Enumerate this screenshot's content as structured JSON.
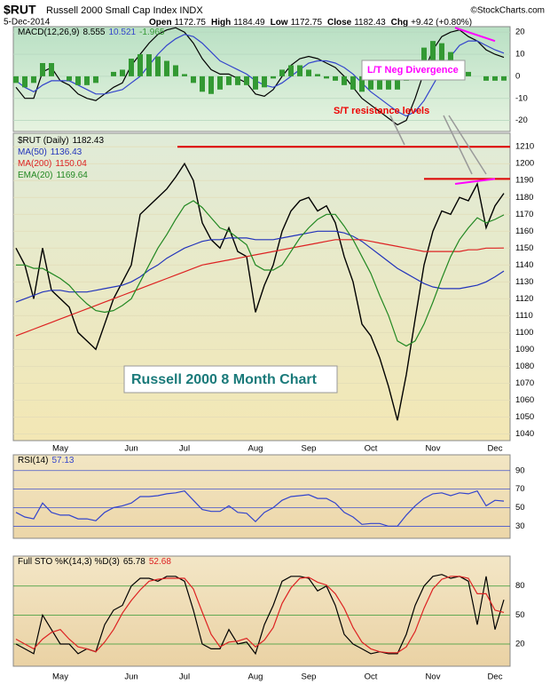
{
  "header": {
    "symbol": "$RUT",
    "name": "Russell 2000 Small Cap Index INDX",
    "date": "5-Dec-2014",
    "source": "©StockCharts.com",
    "quote": [
      {
        "label": "Open",
        "value": "1172.75"
      },
      {
        "label": "High",
        "value": "1184.49"
      },
      {
        "label": "Low",
        "value": "1172.75"
      },
      {
        "label": "Close",
        "value": "1182.43"
      },
      {
        "label": "Chg",
        "value": "+9.42 (+0.80%)"
      }
    ]
  },
  "annotations": [
    "L/T Neg Divergence",
    "S/T resistance levels",
    "Russell 2000 8 Month Chart"
  ],
  "chart_data": [
    {
      "type": "line",
      "label": "MACD(12,26,9)",
      "ylim": [
        -25,
        22.5
      ],
      "yticks": [
        20,
        10,
        0,
        -10,
        -20
      ],
      "grid": true,
      "grid_color": "#b8d8c0",
      "trendline": {
        "values": [
          22,
          16
        ],
        "color": "#ff00ff"
      },
      "series": [
        {
          "color": "#000000",
          "values": [
            -5,
            -10,
            -10,
            2,
            4,
            -2,
            -4,
            -8,
            -10,
            -11,
            -8,
            -5,
            -3,
            5,
            10,
            15,
            19,
            21,
            22,
            20,
            15,
            8,
            3,
            1,
            1,
            -1,
            -3,
            -8,
            -9,
            -6,
            0,
            5,
            8,
            9,
            8,
            6,
            4,
            0,
            -5,
            -10,
            -13,
            -16,
            -19,
            -22,
            -20,
            -10,
            2,
            12,
            18,
            20,
            21,
            18,
            16,
            12,
            10,
            8.555
          ]
        },
        {
          "color": "#3344cc",
          "values": [
            -2,
            -5,
            -7,
            -4,
            -2,
            -2,
            -2,
            -4,
            -6,
            -8,
            -8,
            -7,
            -6,
            -3,
            0,
            5,
            10,
            14,
            17,
            19,
            18,
            15,
            11,
            7,
            5,
            3,
            1,
            -2,
            -4,
            -5,
            -3,
            0,
            3,
            6,
            7,
            7,
            6,
            4,
            1,
            -3,
            -7,
            -10,
            -13,
            -16,
            -18,
            -16,
            -11,
            -4,
            3,
            9,
            14,
            16,
            16,
            14,
            12,
            10.521
          ]
        },
        {
          "color": "#339933",
          "type": "bar",
          "values": [
            -3,
            -5,
            -3,
            6,
            6,
            0,
            -2,
            -4,
            -4,
            -3,
            0,
            2,
            3,
            8,
            10,
            10,
            9,
            7,
            5,
            1,
            -3,
            -7,
            -8,
            -6,
            -4,
            -4,
            -4,
            -6,
            -5,
            -1,
            3,
            5,
            5,
            3,
            1,
            -1,
            -2,
            -4,
            -6,
            -7,
            -6,
            -6,
            -6,
            -6,
            -2,
            6,
            13,
            16,
            15,
            11,
            7,
            2,
            0,
            -2,
            -2,
            -1.965
          ]
        }
      ]
    },
    {
      "type": "line",
      "ylim": [
        1036,
        1218
      ],
      "yticks": [
        1040,
        1050,
        1060,
        1070,
        1080,
        1090,
        1100,
        1110,
        1120,
        1130,
        1140,
        1150,
        1160,
        1170,
        1180,
        1190,
        1200,
        1210
      ],
      "grid": true,
      "grid_color": "#e2dcb8",
      "categories": [
        null,
        null,
        null,
        null,
        null,
        "May",
        null,
        null,
        null,
        null,
        null,
        null,
        null,
        "Jun",
        null,
        null,
        null,
        null,
        null,
        "Jul",
        null,
        null,
        null,
        null,
        null,
        null,
        null,
        "Aug",
        null,
        null,
        null,
        null,
        null,
        "Sep",
        null,
        null,
        null,
        null,
        null,
        null,
        "Oct",
        null,
        null,
        null,
        null,
        null,
        null,
        "Nov",
        null,
        null,
        null,
        null,
        null,
        null,
        "Dec",
        null
      ],
      "hlines": [
        1210,
        1191
      ],
      "hline_color": "#dd0000",
      "trendline": {
        "values": [
          1188,
          1191
        ],
        "color": "#ff00ff"
      },
      "series": [
        {
          "name": "$RUT (Daily)",
          "color": "#000000",
          "values": [
            1150,
            1140,
            1120,
            1150,
            1125,
            1120,
            1115,
            1100,
            1095,
            1090,
            1105,
            1120,
            1130,
            1140,
            1170,
            1175,
            1180,
            1185,
            1192,
            1200,
            1190,
            1165,
            1155,
            1150,
            1162,
            1148,
            1145,
            1112,
            1128,
            1140,
            1160,
            1172,
            1178,
            1180,
            1172,
            1175,
            1165,
            1145,
            1130,
            1105,
            1098,
            1085,
            1068,
            1048,
            1075,
            1108,
            1140,
            1160,
            1172,
            1170,
            1180,
            1178,
            1188,
            1162,
            1175,
            1182.43
          ]
        },
        {
          "name": "MA(50)",
          "color": "#2233bb",
          "values": [
            1118,
            1120,
            1122,
            1124,
            1125,
            1125,
            1124,
            1124,
            1124,
            1125,
            1126,
            1127,
            1128,
            1130,
            1133,
            1137,
            1140,
            1144,
            1147,
            1150,
            1152,
            1154,
            1155,
            1155,
            1156,
            1156,
            1156,
            1155,
            1155,
            1155,
            1156,
            1157,
            1158,
            1159,
            1160,
            1160,
            1160,
            1159,
            1157,
            1154,
            1150,
            1146,
            1142,
            1138,
            1135,
            1132,
            1129,
            1127,
            1126,
            1126,
            1126,
            1127,
            1128,
            1130,
            1133,
            1136.43
          ]
        },
        {
          "name": "MA(200)",
          "color": "#dd2222",
          "values": [
            1098,
            1100,
            1102,
            1104,
            1106,
            1108,
            1110,
            1112,
            1114,
            1116,
            1118,
            1120,
            1122,
            1124,
            1126,
            1128,
            1130,
            1132,
            1134,
            1136,
            1138,
            1140,
            1141,
            1142,
            1143,
            1144,
            1145,
            1146,
            1147,
            1148,
            1149,
            1150,
            1151,
            1152,
            1153,
            1154,
            1155,
            1155,
            1155,
            1155,
            1154,
            1153,
            1152,
            1151,
            1150,
            1149,
            1148,
            1148,
            1148,
            1148,
            1148,
            1149,
            1149,
            1150,
            1150,
            1150.04
          ]
        },
        {
          "name": "EMA(20)",
          "color": "#228822",
          "values": [
            1140,
            1140,
            1138,
            1138,
            1135,
            1132,
            1128,
            1122,
            1117,
            1113,
            1112,
            1113,
            1116,
            1120,
            1130,
            1140,
            1150,
            1158,
            1167,
            1175,
            1178,
            1174,
            1168,
            1162,
            1160,
            1156,
            1152,
            1140,
            1137,
            1137,
            1140,
            1148,
            1156,
            1162,
            1167,
            1170,
            1170,
            1163,
            1155,
            1145,
            1135,
            1122,
            1110,
            1095,
            1092,
            1095,
            1105,
            1118,
            1132,
            1145,
            1155,
            1162,
            1168,
            1165,
            1167,
            1169.64
          ]
        }
      ]
    },
    {
      "type": "line",
      "label": "RSI(14)",
      "ylim": [
        17,
        107
      ],
      "yticks": [
        30,
        50,
        70,
        90
      ],
      "grid": true,
      "grid_color": "#4455cc",
      "series": [
        {
          "color": "#3344cc",
          "values": [
            45,
            40,
            38,
            55,
            45,
            42,
            42,
            38,
            38,
            36,
            45,
            50,
            52,
            55,
            62,
            62,
            63,
            65,
            66,
            68,
            58,
            48,
            46,
            46,
            52,
            45,
            44,
            35,
            45,
            50,
            58,
            62,
            63,
            64,
            60,
            60,
            55,
            45,
            40,
            32,
            33,
            33,
            30,
            30,
            42,
            52,
            60,
            65,
            66,
            63,
            66,
            65,
            68,
            52,
            58,
            57.13
          ]
        }
      ]
    },
    {
      "type": "line",
      "label": "Full STO %K(14,3) %D(3)",
      "ylim": [
        -3,
        111
      ],
      "yticks": [
        20,
        50,
        80
      ],
      "grid": true,
      "grid_color": "#339933",
      "series": [
        {
          "color": "#000000",
          "values": [
            20,
            15,
            10,
            50,
            35,
            20,
            20,
            10,
            15,
            12,
            40,
            55,
            60,
            80,
            88,
            88,
            85,
            90,
            90,
            85,
            55,
            20,
            15,
            15,
            35,
            20,
            22,
            10,
            40,
            60,
            85,
            90,
            90,
            88,
            75,
            80,
            60,
            30,
            20,
            15,
            10,
            12,
            10,
            10,
            30,
            60,
            80,
            90,
            92,
            88,
            90,
            85,
            40,
            90,
            35,
            65.78
          ]
        },
        {
          "color": "#dd2222",
          "values": [
            25,
            20,
            15,
            25,
            32,
            35,
            25,
            17,
            15,
            12,
            22,
            35,
            52,
            65,
            76,
            85,
            87,
            88,
            88,
            88,
            77,
            53,
            30,
            17,
            22,
            23,
            26,
            17,
            24,
            37,
            62,
            78,
            88,
            89,
            84,
            81,
            72,
            57,
            37,
            22,
            15,
            12,
            11,
            11,
            17,
            33,
            57,
            77,
            87,
            90,
            90,
            88,
            72,
            72,
            55,
            52.68
          ]
        }
      ]
    }
  ]
}
